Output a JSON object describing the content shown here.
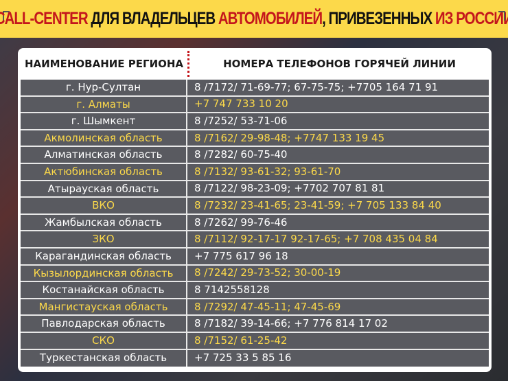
{
  "title": {
    "part1": "CALL-CENTER",
    "part2": " ДЛЯ ВЛАДЕЛЬЦЕВ ",
    "part3": "АВТОМОБИЛЕЙ",
    "part4": ", ПРИВЕЗЕННЫХ ",
    "part5": "ИЗ РОССИИ"
  },
  "colors": {
    "banner": "#fcd94a",
    "accent_red": "#c4161c",
    "highlight": "#fcd94a",
    "text": "#ffffff"
  },
  "table": {
    "headers": [
      "НАИМЕНОВАНИЕ РЕГИОНА",
      "НОМЕРА ТЕЛЕФОНОВ ГОРЯЧЕЙ ЛИНИИ"
    ],
    "rows": [
      {
        "region": "г. Нур-Султан",
        "phones": "8 /7172/ 71-69-77; 67-75-75; +7705 164 71 91"
      },
      {
        "region": "г. Алматы",
        "phones": "+7 747 733 10 20"
      },
      {
        "region": "г. Шымкент",
        "phones": "8 /7252/ 53-71-06"
      },
      {
        "region": "Акмолинская область",
        "phones": "8 /7162/ 29-98-48; +7747 133 19 45"
      },
      {
        "region": "Алматинская область",
        "phones": "8 /7282/ 60-75-40"
      },
      {
        "region": "Актюбинская область",
        "phones": "8 /7132/ 93-61-32; 93-61-70"
      },
      {
        "region": "Атырауская область",
        "phones": "8 /7122/ 98-23-09; +7702 707 81 81"
      },
      {
        "region": "ВКО",
        "phones": "8 /7232/ 23-41-65;  23-41-59; +7 705 133 84 40"
      },
      {
        "region": "Жамбылская область",
        "phones": "8 /7262/ 99-76-46"
      },
      {
        "region": "ЗКО",
        "phones": "8 /7112/ 92-17-17 92-17-65; +7 708 435 04 84"
      },
      {
        "region": "Карагандинская область",
        "phones": "+7 775 617 96 18"
      },
      {
        "region": "Кызылординская область",
        "phones": "8 /7242/ 29-73-52; 30-00-19"
      },
      {
        "region": "Костанайская область",
        "phones": "8 7142558128"
      },
      {
        "region": "Мангистауская область",
        "phones": "8 /7292/ 47-45-11; 47-45-69"
      },
      {
        "region": "Павлодарская область",
        "phones": "8 /7182/ 39-14-66; +7 776 814 17 02"
      },
      {
        "region": "СКО",
        "phones": "8 /7152/ 61-25-42"
      },
      {
        "region": "Туркестанская область",
        "phones": "+7 725 33 5 85 16"
      }
    ]
  }
}
